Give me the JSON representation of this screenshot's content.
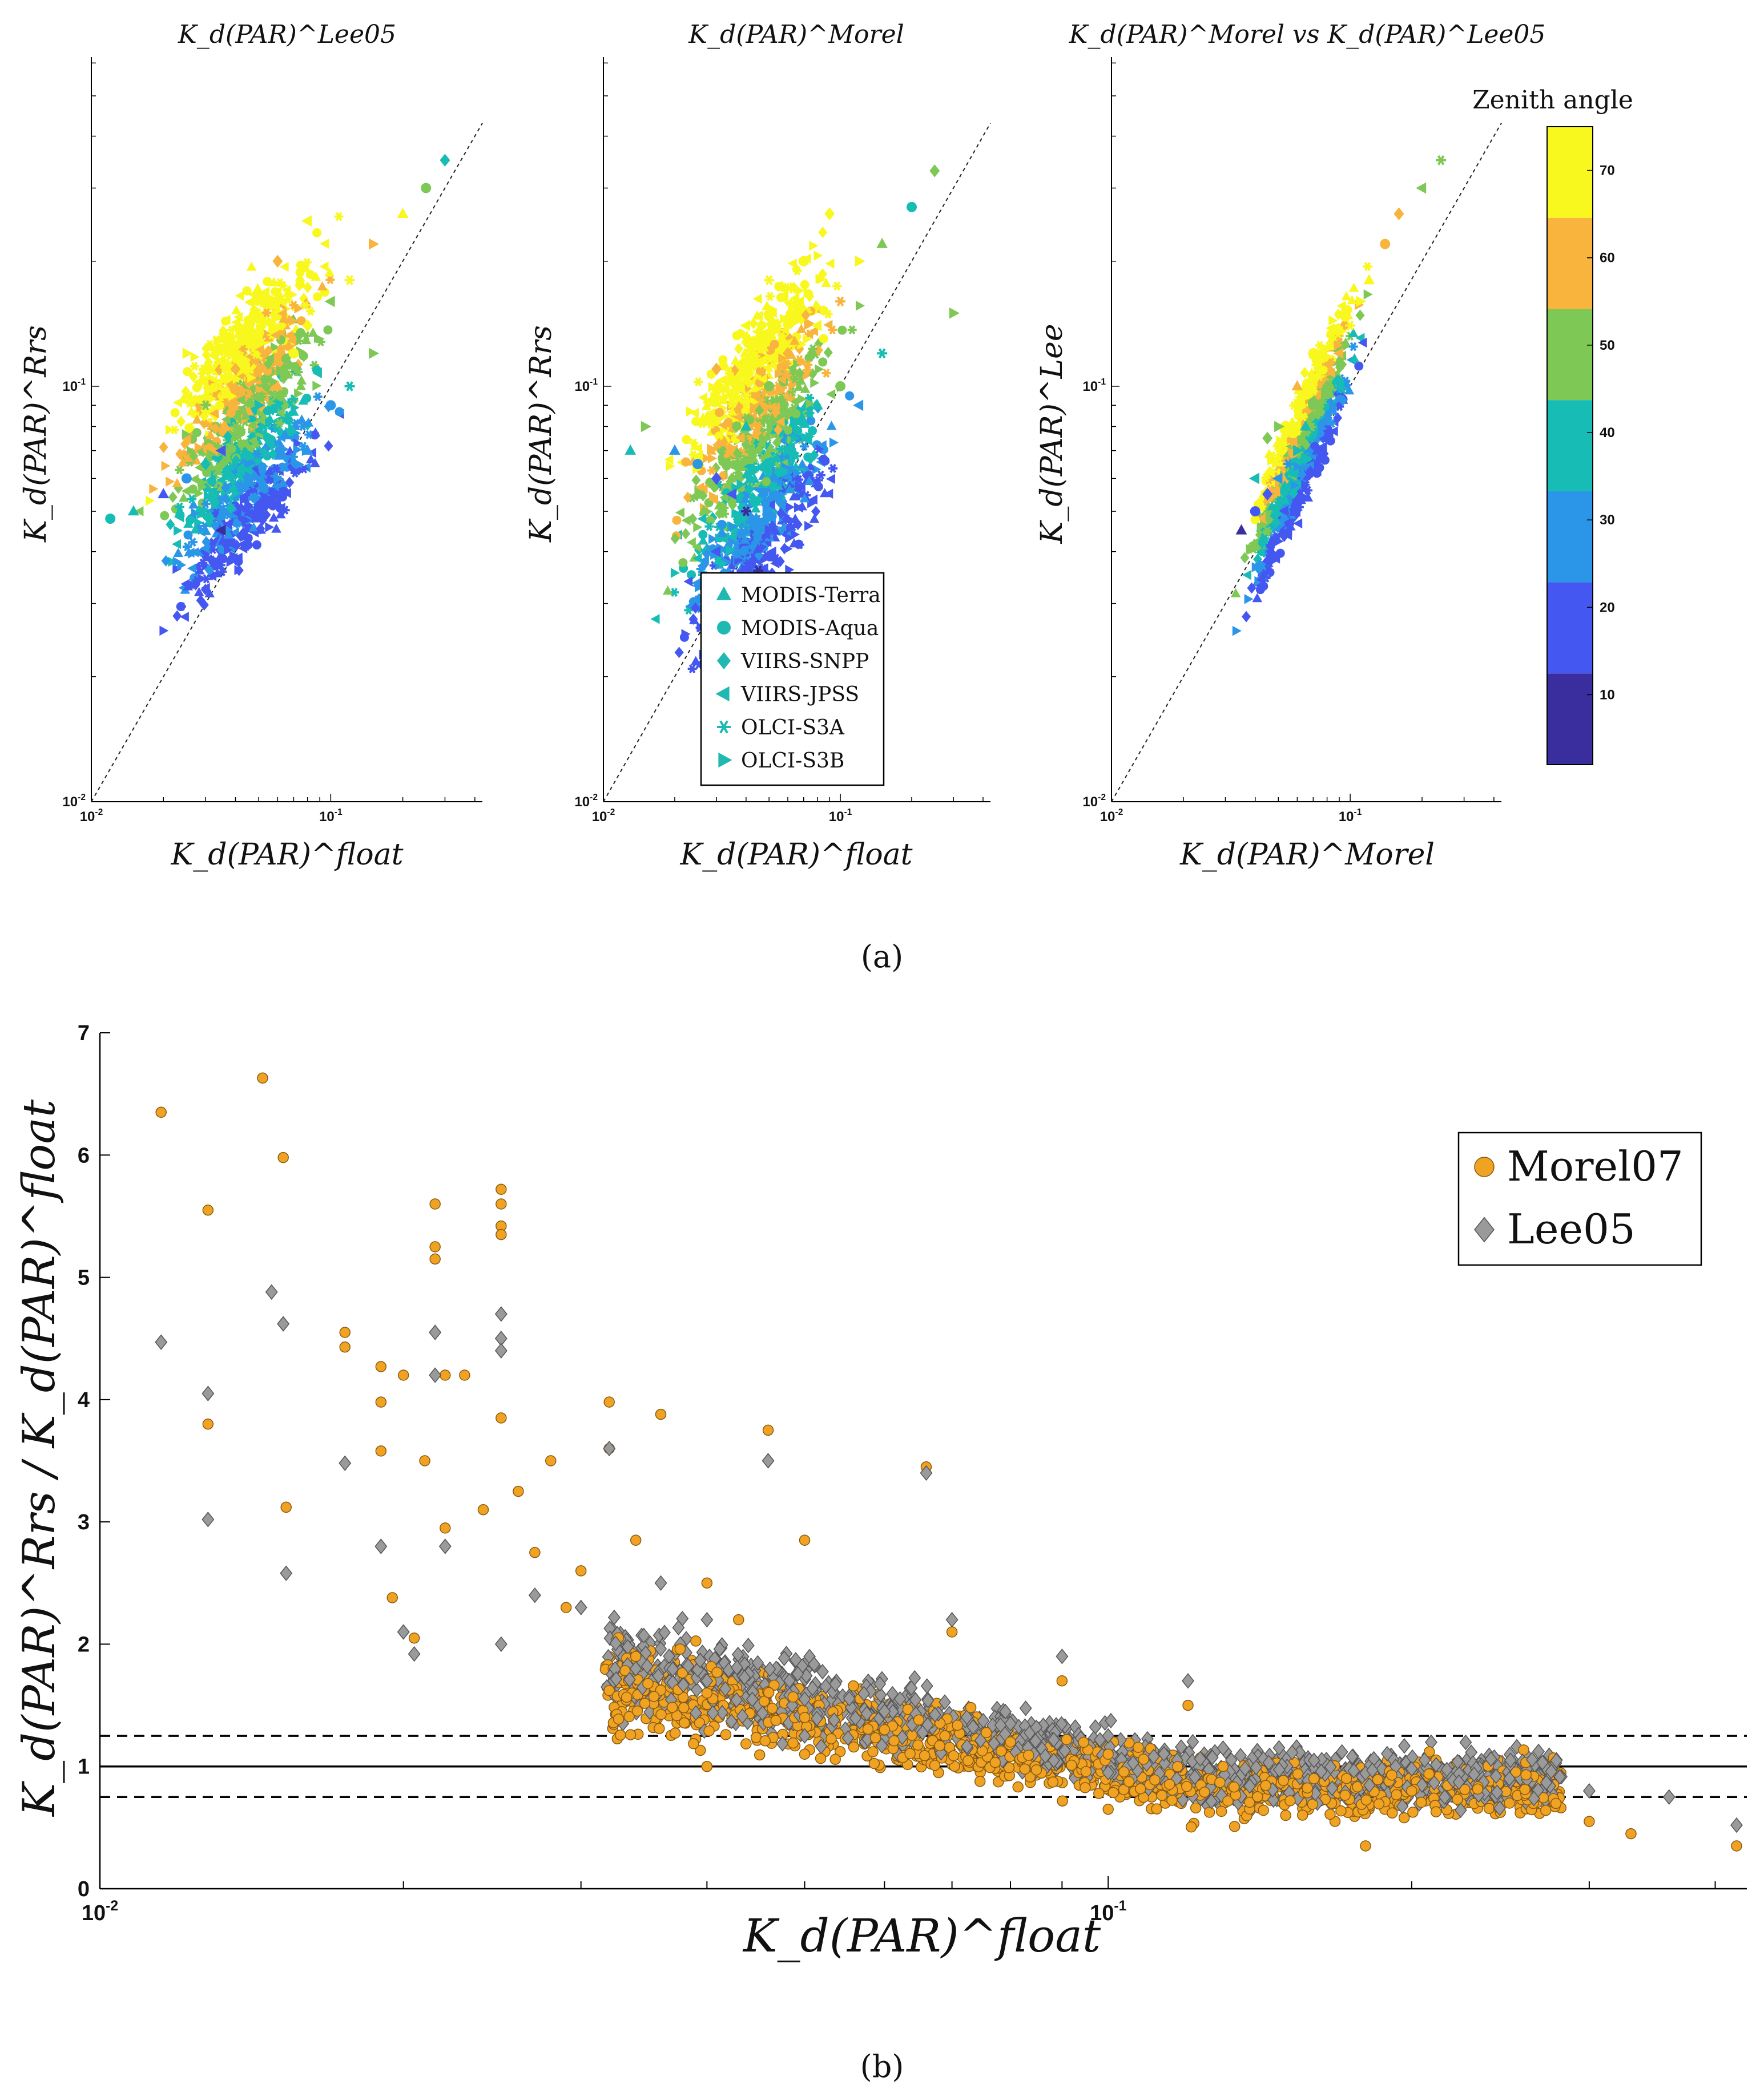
{
  "figure": {
    "panel_a_label": "(a)",
    "panel_b_label": "(b)",
    "colorbar_title": "Zenith angle",
    "legend_a": [
      {
        "label": "MODIS-Terra",
        "marker": "triangle-up"
      },
      {
        "label": "MODIS-Aqua",
        "marker": "circle"
      },
      {
        "label": "VIIRS-SNPP",
        "marker": "diamond"
      },
      {
        "label": "VIIRS-JPSS",
        "marker": "triangle-left"
      },
      {
        "label": "OLCI-S3A",
        "marker": "asterisk"
      },
      {
        "label": "OLCI-S3B",
        "marker": "triangle-right"
      }
    ],
    "legend_b": [
      {
        "label": "Morel07",
        "marker": "circle"
      },
      {
        "label": "Lee05",
        "marker": "diamond"
      }
    ],
    "colors": {
      "morel": "#f0a323",
      "lee": "#9a9a9a",
      "teal_legend": "#1fb8b3"
    },
    "colormap": [
      "#3a2e9e",
      "#4457f0",
      "#2b96e8",
      "#17bcb5",
      "#7ec855",
      "#f8b43c",
      "#f8f81e"
    ]
  },
  "chart_data": [
    {
      "type": "scatter",
      "title": "K_d(PAR)^Lee05",
      "xlabel": "K_d(PAR)^float",
      "ylabel": "K_d(PAR)^Rrs",
      "xscale": "log",
      "yscale": "log",
      "xlim": [
        0.01,
        0.43
      ],
      "ylim": [
        0.01,
        0.62
      ],
      "xticks": [
        {
          "v": 0.01,
          "label": "10^-2"
        },
        {
          "v": 0.1,
          "label": "10^-1"
        }
      ],
      "yticks": [
        {
          "v": 0.01,
          "label": "10^-2"
        },
        {
          "v": 0.1,
          "label": "10^-1"
        }
      ],
      "one_to_one_line": true,
      "color_by": "Zenith angle",
      "points": [
        [
          0.02,
          0.055,
          12
        ],
        [
          0.025,
          0.06,
          22
        ],
        [
          0.03,
          0.065,
          30
        ],
        [
          0.035,
          0.07,
          18
        ],
        [
          0.04,
          0.08,
          40
        ],
        [
          0.05,
          0.09,
          35
        ],
        [
          0.06,
          0.1,
          50
        ],
        [
          0.07,
          0.12,
          60
        ],
        [
          0.08,
          0.14,
          65
        ],
        [
          0.1,
          0.16,
          45
        ],
        [
          0.12,
          0.18,
          70
        ],
        [
          0.15,
          0.22,
          55
        ],
        [
          0.2,
          0.26,
          62
        ],
        [
          0.25,
          0.3,
          40
        ],
        [
          0.3,
          0.35,
          38
        ],
        [
          0.035,
          0.045,
          8
        ],
        [
          0.045,
          0.05,
          15
        ],
        [
          0.06,
          0.06,
          20
        ],
        [
          0.08,
          0.07,
          25
        ],
        [
          0.1,
          0.09,
          28
        ],
        [
          0.04,
          0.11,
          55
        ],
        [
          0.05,
          0.13,
          62
        ],
        [
          0.03,
          0.09,
          48
        ],
        [
          0.025,
          0.12,
          60
        ],
        [
          0.015,
          0.05,
          34
        ],
        [
          0.012,
          0.048,
          30
        ],
        [
          0.06,
          0.2,
          58
        ],
        [
          0.08,
          0.25,
          65
        ],
        [
          0.12,
          0.1,
          32
        ],
        [
          0.15,
          0.12,
          42
        ]
      ]
    },
    {
      "type": "scatter",
      "title": "K_d(PAR)^Morel",
      "xlabel": "K_d(PAR)^float",
      "ylabel": "K_d(PAR)^Rrs",
      "xscale": "log",
      "yscale": "log",
      "xlim": [
        0.01,
        0.43
      ],
      "ylim": [
        0.01,
        0.62
      ],
      "xticks": [
        {
          "v": 0.01,
          "label": "10^-2"
        },
        {
          "v": 0.1,
          "label": "10^-1"
        }
      ],
      "yticks": [
        {
          "v": 0.01,
          "label": "10^-2"
        },
        {
          "v": 0.1,
          "label": "10^-1"
        }
      ],
      "one_to_one_line": true,
      "color_by": "Zenith angle",
      "points": [
        [
          0.02,
          0.07,
          22
        ],
        [
          0.025,
          0.065,
          28
        ],
        [
          0.03,
          0.06,
          15
        ],
        [
          0.035,
          0.055,
          10
        ],
        [
          0.04,
          0.05,
          8
        ],
        [
          0.05,
          0.045,
          12
        ],
        [
          0.04,
          0.08,
          38
        ],
        [
          0.05,
          0.1,
          45
        ],
        [
          0.06,
          0.12,
          58
        ],
        [
          0.08,
          0.14,
          62
        ],
        [
          0.1,
          0.16,
          50
        ],
        [
          0.12,
          0.2,
          66
        ],
        [
          0.15,
          0.22,
          42
        ],
        [
          0.2,
          0.27,
          38
        ],
        [
          0.25,
          0.33,
          40
        ],
        [
          0.03,
          0.04,
          10
        ],
        [
          0.045,
          0.036,
          6
        ],
        [
          0.06,
          0.07,
          30
        ],
        [
          0.08,
          0.09,
          33
        ],
        [
          0.1,
          0.1,
          40
        ],
        [
          0.03,
          0.11,
          52
        ],
        [
          0.04,
          0.14,
          62
        ],
        [
          0.05,
          0.18,
          68
        ],
        [
          0.015,
          0.08,
          40
        ],
        [
          0.013,
          0.07,
          32
        ],
        [
          0.07,
          0.2,
          60
        ],
        [
          0.09,
          0.26,
          64
        ],
        [
          0.12,
          0.09,
          28
        ],
        [
          0.15,
          0.12,
          36
        ],
        [
          0.3,
          0.15,
          45
        ]
      ]
    },
    {
      "type": "scatter",
      "title": "K_d(PAR)^Morel vs K_d(PAR)^Lee05",
      "xlabel": "K_d(PAR)^Morel",
      "ylabel": "K_d(PAR)^Lee",
      "xscale": "log",
      "yscale": "log",
      "xlim": [
        0.01,
        0.43
      ],
      "ylim": [
        0.01,
        0.62
      ],
      "xticks": [
        {
          "v": 0.01,
          "label": "10^-2"
        },
        {
          "v": 0.1,
          "label": "10^-1"
        }
      ],
      "yticks": [
        {
          "v": 0.01,
          "label": "10^-2"
        },
        {
          "v": 0.1,
          "label": "10^-1"
        }
      ],
      "one_to_one_line": true,
      "color_by": "Zenith angle",
      "points": [
        [
          0.035,
          0.045,
          8
        ],
        [
          0.04,
          0.05,
          12
        ],
        [
          0.045,
          0.055,
          18
        ],
        [
          0.05,
          0.06,
          22
        ],
        [
          0.055,
          0.065,
          28
        ],
        [
          0.06,
          0.07,
          32
        ],
        [
          0.065,
          0.08,
          38
        ],
        [
          0.07,
          0.09,
          42
        ],
        [
          0.08,
          0.1,
          48
        ],
        [
          0.09,
          0.12,
          55
        ],
        [
          0.1,
          0.14,
          60
        ],
        [
          0.11,
          0.16,
          62
        ],
        [
          0.12,
          0.18,
          65
        ],
        [
          0.14,
          0.22,
          58
        ],
        [
          0.16,
          0.26,
          50
        ],
        [
          0.2,
          0.3,
          45
        ],
        [
          0.24,
          0.35,
          40
        ],
        [
          0.05,
          0.08,
          45
        ],
        [
          0.06,
          0.1,
          52
        ],
        [
          0.07,
          0.12,
          62
        ],
        [
          0.045,
          0.075,
          40
        ],
        [
          0.04,
          0.06,
          30
        ]
      ]
    },
    {
      "type": "scatter",
      "xlabel": "K_d(PAR)^float",
      "ylabel": "K_d(PAR)^Rrs / K_d(PAR)^float",
      "xscale": "log",
      "xlim": [
        0.01,
        0.43
      ],
      "ylim": [
        0,
        7
      ],
      "xticks": [
        {
          "v": 0.01,
          "label": "10^-2"
        },
        {
          "v": 0.1,
          "label": "10^-1"
        }
      ],
      "yticks": [
        0,
        1,
        2,
        3,
        4,
        5,
        6,
        7
      ],
      "reference_lines": [
        {
          "y": 1.0,
          "style": "solid"
        },
        {
          "y": 1.25,
          "style": "dashed"
        },
        {
          "y": 0.75,
          "style": "dashed"
        }
      ],
      "series": [
        {
          "name": "Morel07",
          "points": [
            [
              0.0115,
              6.35
            ],
            [
              0.0128,
              5.55
            ],
            [
              0.0128,
              3.8
            ],
            [
              0.0145,
              6.63
            ],
            [
              0.0152,
              5.98
            ],
            [
              0.0153,
              3.12
            ],
            [
              0.0175,
              4.55
            ],
            [
              0.0175,
              4.43
            ],
            [
              0.019,
              4.27
            ],
            [
              0.019,
              3.98
            ],
            [
              0.019,
              3.58
            ],
            [
              0.0195,
              2.38
            ],
            [
              0.02,
              4.2
            ],
            [
              0.0205,
              2.05
            ],
            [
              0.021,
              3.5
            ],
            [
              0.0215,
              5.6
            ],
            [
              0.0215,
              5.25
            ],
            [
              0.0215,
              5.15
            ],
            [
              0.022,
              4.2
            ],
            [
              0.022,
              2.95
            ],
            [
              0.023,
              4.2
            ],
            [
              0.024,
              3.1
            ],
            [
              0.025,
              5.72
            ],
            [
              0.025,
              5.6
            ],
            [
              0.025,
              5.42
            ],
            [
              0.025,
              5.35
            ],
            [
              0.025,
              3.85
            ],
            [
              0.026,
              3.25
            ],
            [
              0.027,
              2.75
            ],
            [
              0.028,
              3.5
            ],
            [
              0.029,
              2.3
            ],
            [
              0.03,
              2.6
            ],
            [
              0.032,
              3.98
            ],
            [
              0.032,
              3.6
            ],
            [
              0.034,
              2.85
            ],
            [
              0.036,
              3.88
            ],
            [
              0.04,
              2.5
            ],
            [
              0.043,
              2.2
            ],
            [
              0.046,
              3.75
            ],
            [
              0.05,
              2.85
            ],
            [
              0.066,
              3.45
            ],
            [
              0.034,
              1.9
            ],
            [
              0.04,
              1.6
            ],
            [
              0.05,
              1.4
            ],
            [
              0.06,
              1.3
            ],
            [
              0.08,
              1.2
            ],
            [
              0.1,
              1.1
            ],
            [
              0.13,
              1.0
            ],
            [
              0.16,
              0.9
            ],
            [
              0.2,
              0.8
            ],
            [
              0.25,
              0.7
            ],
            [
              0.3,
              0.55
            ],
            [
              0.33,
              0.45
            ],
            [
              0.42,
              0.35
            ],
            [
              0.18,
              0.35
            ],
            [
              0.12,
              1.5
            ],
            [
              0.09,
              1.7
            ],
            [
              0.07,
              2.1
            ],
            [
              0.05,
              1.1
            ],
            [
              0.04,
              1.0
            ],
            [
              0.1,
              0.65
            ],
            [
              0.15,
              0.6
            ]
          ]
        },
        {
          "name": "Lee05",
          "points": [
            [
              0.0115,
              4.47
            ],
            [
              0.0128,
              4.05
            ],
            [
              0.0128,
              3.02
            ],
            [
              0.0148,
              4.88
            ],
            [
              0.0152,
              4.62
            ],
            [
              0.0153,
              2.58
            ],
            [
              0.0175,
              3.48
            ],
            [
              0.019,
              2.8
            ],
            [
              0.02,
              2.1
            ],
            [
              0.0205,
              1.92
            ],
            [
              0.0215,
              4.55
            ],
            [
              0.0215,
              4.2
            ],
            [
              0.022,
              2.8
            ],
            [
              0.025,
              4.7
            ],
            [
              0.025,
              4.5
            ],
            [
              0.025,
              4.4
            ],
            [
              0.025,
              2.0
            ],
            [
              0.027,
              2.4
            ],
            [
              0.03,
              2.3
            ],
            [
              0.032,
              3.6
            ],
            [
              0.036,
              2.5
            ],
            [
              0.04,
              2.2
            ],
            [
              0.046,
              3.5
            ],
            [
              0.066,
              3.4
            ],
            [
              0.034,
              1.8
            ],
            [
              0.04,
              1.7
            ],
            [
              0.05,
              1.55
            ],
            [
              0.06,
              1.45
            ],
            [
              0.08,
              1.35
            ],
            [
              0.1,
              1.25
            ],
            [
              0.13,
              1.15
            ],
            [
              0.16,
              1.05
            ],
            [
              0.2,
              0.98
            ],
            [
              0.25,
              0.9
            ],
            [
              0.3,
              0.8
            ],
            [
              0.36,
              0.75
            ],
            [
              0.42,
              0.52
            ],
            [
              0.12,
              1.7
            ],
            [
              0.09,
              1.9
            ],
            [
              0.07,
              2.2
            ],
            [
              0.05,
              1.25
            ],
            [
              0.1,
              0.95
            ]
          ]
        }
      ]
    }
  ]
}
